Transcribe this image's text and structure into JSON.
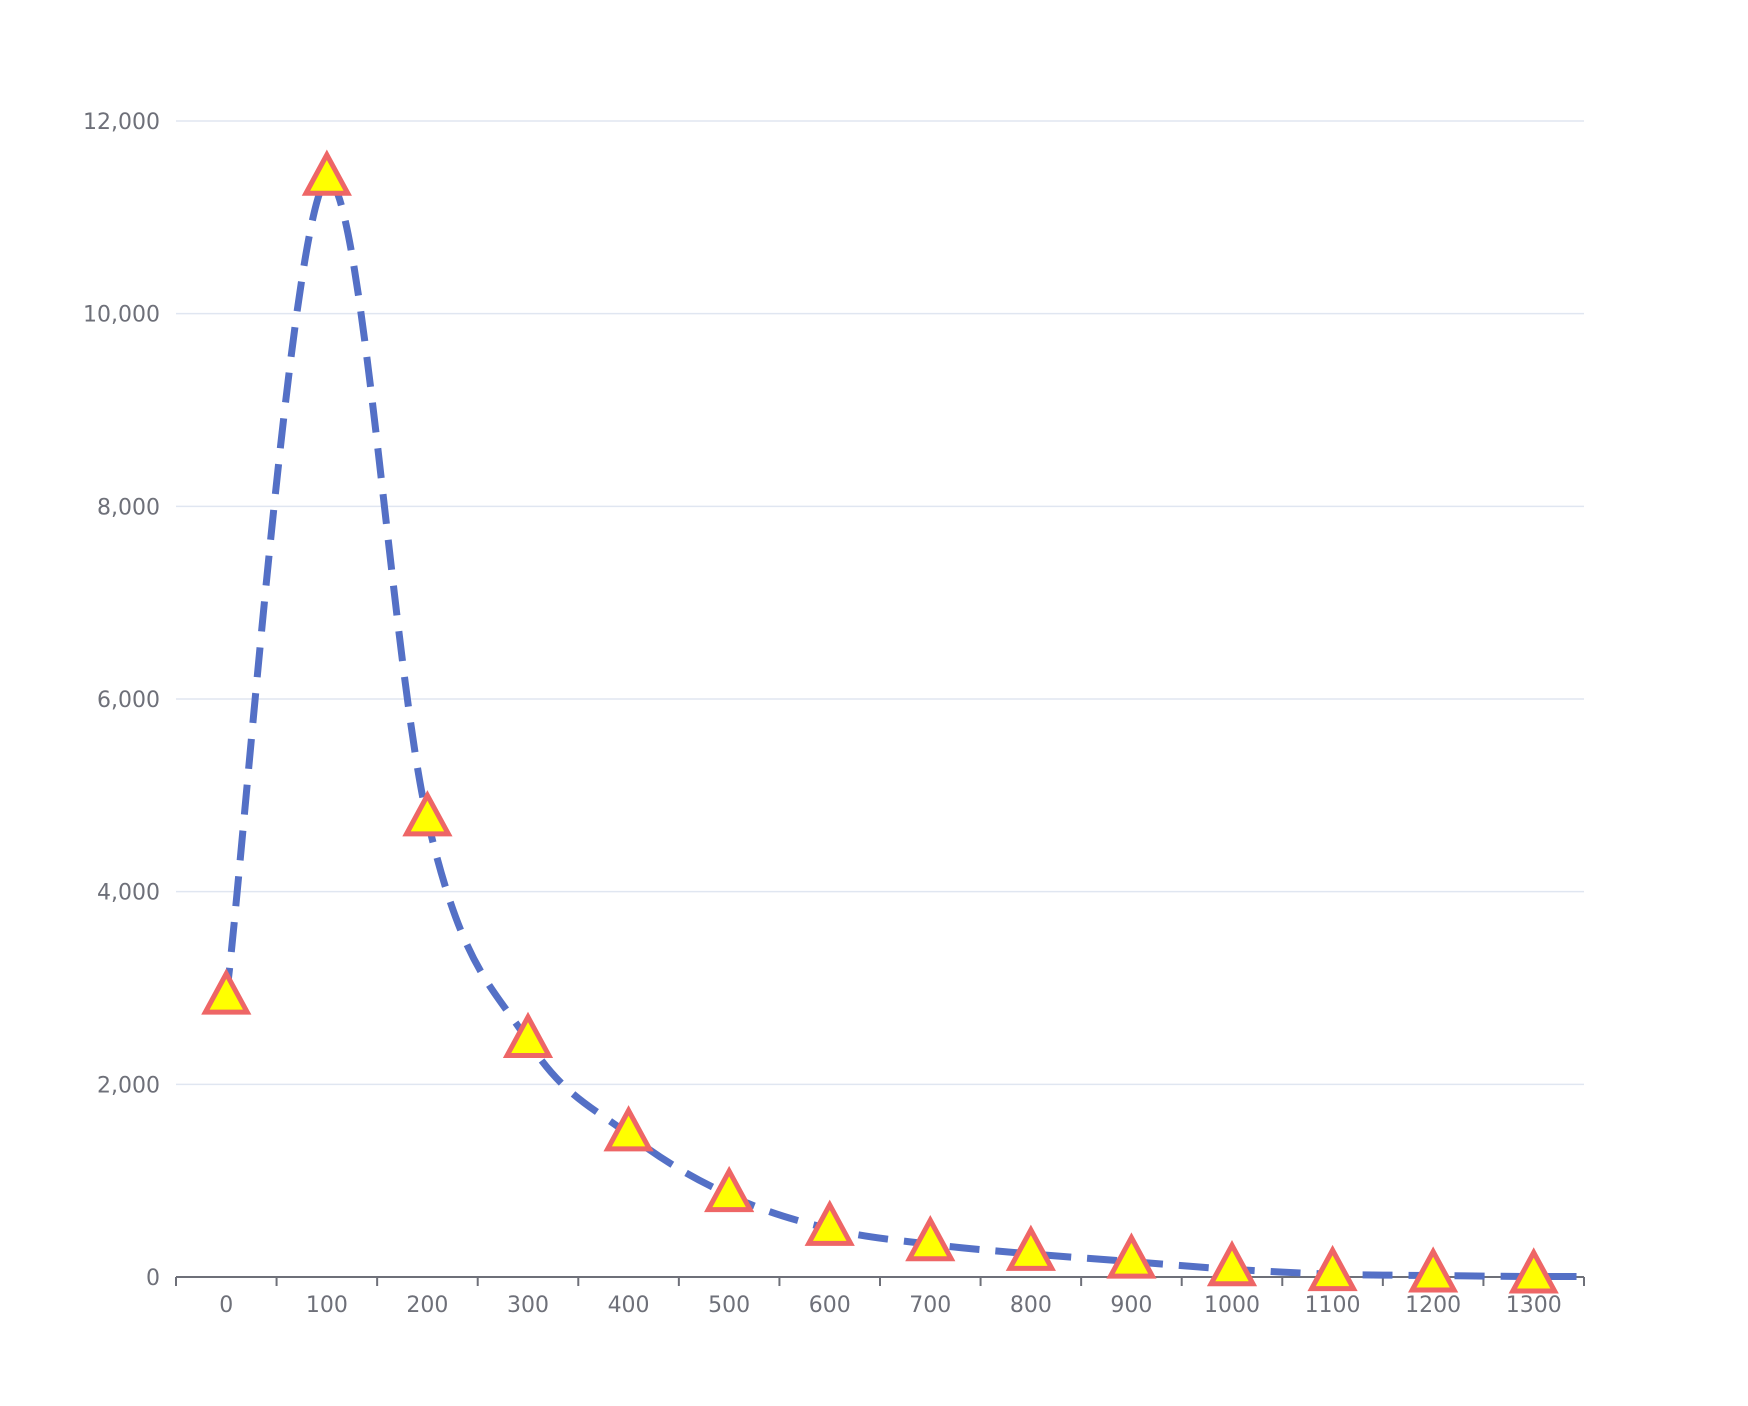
{
  "chart_data": {
    "type": "line",
    "title": "",
    "xlabel": "",
    "ylabel": "",
    "categories": [
      "0",
      "100",
      "200",
      "300",
      "400",
      "500",
      "600",
      "700",
      "800",
      "900",
      "1000",
      "1100",
      "1200",
      "1300"
    ],
    "series": [
      {
        "values": [
          2900,
          11400,
          4750,
          2450,
          1480,
          850,
          500,
          340,
          240,
          160,
          80,
          30,
          15,
          5
        ],
        "line_color": "#5470c6",
        "line_style": "dashed",
        "marker": "triangle",
        "marker_fill": "#ffff00",
        "marker_border": "#ee6666",
        "smooth": true
      }
    ],
    "y_ticks": [
      "0",
      "2,000",
      "4,000",
      "6,000",
      "8,000",
      "10,000",
      "12,000"
    ],
    "ylim": [
      0,
      12000
    ],
    "grid": true,
    "legend": false
  }
}
